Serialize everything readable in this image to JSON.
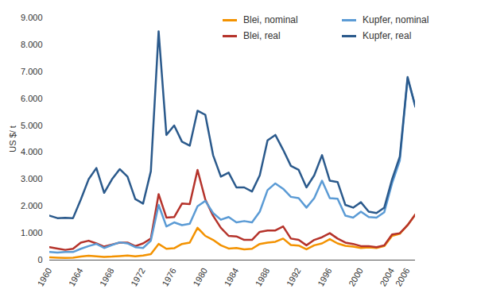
{
  "chart_data": {
    "type": "line",
    "y_label": "US $/ t",
    "x": [
      1960,
      1961,
      1962,
      1963,
      1964,
      1965,
      1966,
      1967,
      1968,
      1969,
      1970,
      1971,
      1972,
      1973,
      1974,
      1975,
      1976,
      1977,
      1978,
      1979,
      1980,
      1981,
      1982,
      1983,
      1984,
      1985,
      1986,
      1987,
      1988,
      1989,
      1990,
      1991,
      1992,
      1993,
      1994,
      1995,
      1996,
      1997,
      1998,
      1999,
      2000,
      2001,
      2002,
      2003,
      2004,
      2005,
      2006,
      2007
    ],
    "series": [
      {
        "name": "Blei, nominal",
        "color": "#f39200",
        "values": [
          100,
          90,
          80,
          90,
          130,
          160,
          140,
          120,
          130,
          150,
          170,
          140,
          170,
          220,
          600,
          420,
          440,
          600,
          650,
          1200,
          900,
          750,
          550,
          430,
          450,
          400,
          420,
          600,
          650,
          680,
          800,
          560,
          540,
          400,
          550,
          620,
          780,
          620,
          530,
          500,
          450,
          470,
          450,
          520,
          900,
          980,
          1300,
          1700
        ]
      },
      {
        "name": "Blei, real",
        "color": "#b5332b",
        "values": [
          480,
          430,
          380,
          420,
          650,
          720,
          620,
          500,
          580,
          650,
          650,
          520,
          620,
          800,
          2450,
          1580,
          1600,
          2100,
          2080,
          3350,
          2250,
          1650,
          1200,
          900,
          880,
          750,
          750,
          1050,
          1100,
          1100,
          1250,
          800,
          750,
          550,
          750,
          850,
          1000,
          800,
          650,
          600,
          520,
          520,
          480,
          550,
          950,
          1000,
          1300,
          1700
        ]
      },
      {
        "name": "Kupfer, nominal",
        "color": "#5b9bd5",
        "values": [
          300,
          280,
          300,
          300,
          420,
          520,
          600,
          450,
          560,
          660,
          620,
          480,
          450,
          720,
          2050,
          1250,
          1400,
          1300,
          1350,
          2000,
          2200,
          1750,
          1500,
          1600,
          1400,
          1450,
          1400,
          1800,
          2600,
          2850,
          2650,
          2350,
          2300,
          1950,
          2300,
          2950,
          2300,
          2280,
          1650,
          1580,
          1800,
          1600,
          1580,
          1780,
          2850,
          3700,
          6750,
          5700
        ]
      },
      {
        "name": "Kupfer, real",
        "color": "#2b5a8c",
        "values": [
          1650,
          1560,
          1570,
          1560,
          2250,
          3000,
          3420,
          2500,
          3000,
          3380,
          3100,
          2270,
          2100,
          3300,
          8500,
          4650,
          5000,
          4400,
          4250,
          5550,
          5400,
          3900,
          3100,
          3250,
          2700,
          2700,
          2550,
          3150,
          4450,
          4650,
          4100,
          3500,
          3350,
          2700,
          3150,
          3900,
          2950,
          2900,
          2050,
          1950,
          2150,
          1800,
          1750,
          1950,
          3000,
          3850,
          6800,
          5700
        ]
      }
    ],
    "xlim": [
      1960,
      2007
    ],
    "xticks": [
      1960,
      1964,
      1968,
      1972,
      1976,
      1980,
      1984,
      1988,
      1992,
      1996,
      2000,
      2004,
      2006
    ],
    "ylim": [
      0,
      9000
    ],
    "yticks": [
      0,
      {
        "value": 1000,
        "label": "1.000"
      },
      {
        "value": 2000,
        "label": "2.000"
      },
      {
        "value": 3000,
        "label": "3.000"
      },
      {
        "value": 4000,
        "label": "4.000"
      },
      {
        "value": 5000,
        "label": "5.000"
      },
      {
        "value": 6000,
        "label": "6.000"
      },
      {
        "value": 7000,
        "label": "7.000"
      },
      {
        "value": 8000,
        "label": "8.000"
      },
      {
        "value": 9000,
        "label": "9.000"
      }
    ],
    "grid": false,
    "legend": "top"
  }
}
